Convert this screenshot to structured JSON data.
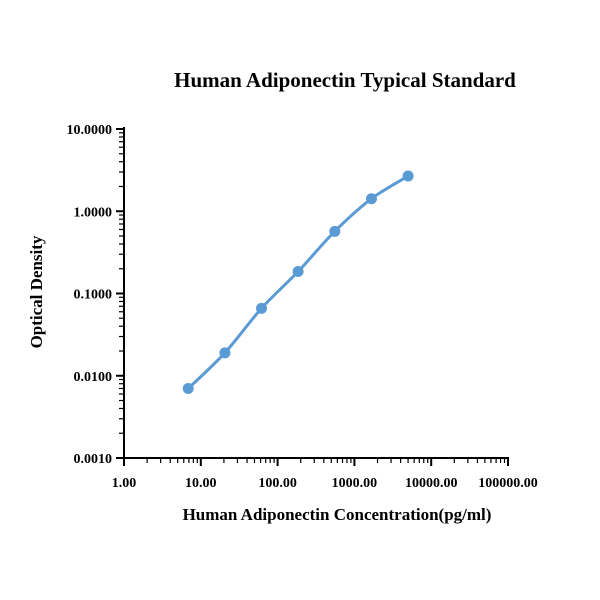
{
  "chart_data": {
    "type": "line",
    "title": "Human Adiponectin Typical Standard",
    "xlabel": "Human Adiponectin Concentration(pg/ml)",
    "ylabel": "Optical Density",
    "x_scale": "log",
    "y_scale": "log",
    "xlim": [
      1,
      100000
    ],
    "ylim": [
      0.001,
      10
    ],
    "x_tick_values": [
      1,
      10,
      100,
      1000,
      10000,
      100000
    ],
    "x_tick_labels": [
      "1.00",
      "10.00",
      "100.00",
      "1000.00",
      "10000.00",
      "100000.00"
    ],
    "y_tick_values": [
      0.001,
      0.01,
      0.1,
      1,
      10
    ],
    "y_tick_labels": [
      "0.0010",
      "0.0100",
      "0.1000",
      "1.0000",
      "10.0000"
    ],
    "grid": false,
    "series": [
      {
        "x": [
          6.86,
          20.6,
          61.7,
          185,
          556,
          1667,
          5000
        ],
        "y": [
          0.007,
          0.019,
          0.066,
          0.185,
          0.57,
          1.42,
          2.68
        ],
        "color": "#5b9bd5"
      }
    ]
  }
}
